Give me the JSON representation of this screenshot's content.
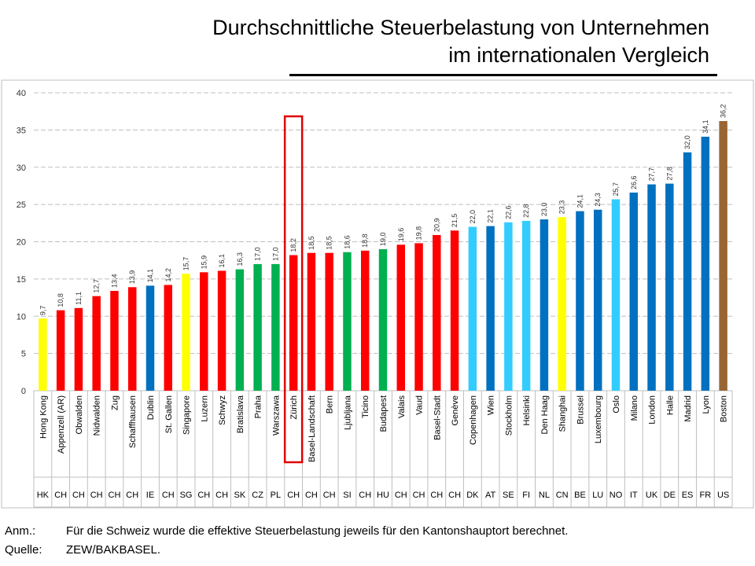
{
  "title": {
    "line1": "Durchschnittliche Steuerbelastung von Unternehmen",
    "line2": "im internationalen Vergleich"
  },
  "chart_data": {
    "type": "bar",
    "ylim": [
      0,
      40
    ],
    "yticks": [
      0,
      5,
      10,
      15,
      20,
      25,
      30,
      35,
      40
    ],
    "grid": true,
    "highlight_category": "Zürich",
    "categories": [
      "Hong Kong",
      "Appenzell (AR)",
      "Obwalden",
      "Nidwalden",
      "Zug",
      "Schaffhausen",
      "Dublin",
      "St. Gallen",
      "Singapore",
      "Luzern",
      "Schwyz",
      "Bratislava",
      "Praha",
      "Warszawa",
      "Zürich",
      "Basel-Landschaft",
      "Bern",
      "Ljubljana",
      "Ticino",
      "Budapest",
      "Valais",
      "Vaud",
      "Basel-Stadt",
      "Genève",
      "Copenhagen",
      "Wien",
      "Stockholm",
      "Helsinki",
      "Den Haag",
      "Shanghai",
      "Brussel",
      "Luxembourg",
      "Oslo",
      "Milano",
      "London",
      "Halle",
      "Madrid",
      "Lyon",
      "Boston"
    ],
    "country_codes": [
      "HK",
      "CH",
      "CH",
      "CH",
      "CH",
      "CH",
      "IE",
      "CH",
      "SG",
      "CH",
      "CH",
      "SK",
      "CZ",
      "PL",
      "CH",
      "CH",
      "CH",
      "SI",
      "CH",
      "HU",
      "CH",
      "CH",
      "CH",
      "CH",
      "DK",
      "AT",
      "SE",
      "FI",
      "NL",
      "CN",
      "BE",
      "LU",
      "NO",
      "IT",
      "UK",
      "DE",
      "ES",
      "FR",
      "US"
    ],
    "values": [
      9.7,
      10.8,
      11.1,
      12.7,
      13.4,
      13.9,
      14.1,
      14.2,
      15.7,
      15.9,
      16.1,
      16.3,
      17.0,
      17.0,
      18.2,
      18.5,
      18.5,
      18.6,
      18.8,
      19.0,
      19.6,
      19.8,
      20.9,
      21.5,
      22.0,
      22.1,
      22.6,
      22.8,
      23.0,
      23.3,
      24.1,
      24.3,
      25.7,
      26.6,
      27.7,
      27.8,
      32.0,
      34.1,
      36.2
    ],
    "labels": [
      "9,7",
      "10,8",
      "11,1",
      "12,7",
      "13,4",
      "13,9",
      "14,1",
      "14,2",
      "15,7",
      "15,9",
      "16,1",
      "16,3",
      "17,0",
      "17,0",
      "18,2",
      "18,5",
      "18,5",
      "18,6",
      "18,8",
      "19,0",
      "19,6",
      "19,8",
      "20,9",
      "21,5",
      "22,0",
      "22,1",
      "22,6",
      "22,8",
      "23,0",
      "23,3",
      "24,1",
      "24,3",
      "25,7",
      "26,6",
      "27,7",
      "27,8",
      "32,0",
      "34,1",
      "36,2"
    ],
    "colors": [
      "#ffff00",
      "#ff0000",
      "#ff0000",
      "#ff0000",
      "#ff0000",
      "#ff0000",
      "#0070c0",
      "#ff0000",
      "#ffff00",
      "#ff0000",
      "#ff0000",
      "#00b050",
      "#00b050",
      "#00b050",
      "#ff0000",
      "#ff0000",
      "#ff0000",
      "#00b050",
      "#ff0000",
      "#00b050",
      "#ff0000",
      "#ff0000",
      "#ff0000",
      "#ff0000",
      "#33ccff",
      "#0070c0",
      "#33ccff",
      "#33ccff",
      "#0070c0",
      "#ffff00",
      "#0070c0",
      "#0070c0",
      "#33ccff",
      "#0070c0",
      "#0070c0",
      "#0070c0",
      "#0070c0",
      "#0070c0",
      "#996633"
    ]
  },
  "notes": {
    "anm_label": "Anm.:",
    "anm_text": "Für die Schweiz wurde die effektive Steuerbelastung jeweils für den Kantonshauptort berechnet.",
    "quelle_label": "Quelle:",
    "quelle_text": "ZEW/BAKBASEL."
  },
  "colors": {
    "highlight": "#e00000",
    "grid": "#bfbfbf",
    "frame": "#bfbfbf"
  }
}
